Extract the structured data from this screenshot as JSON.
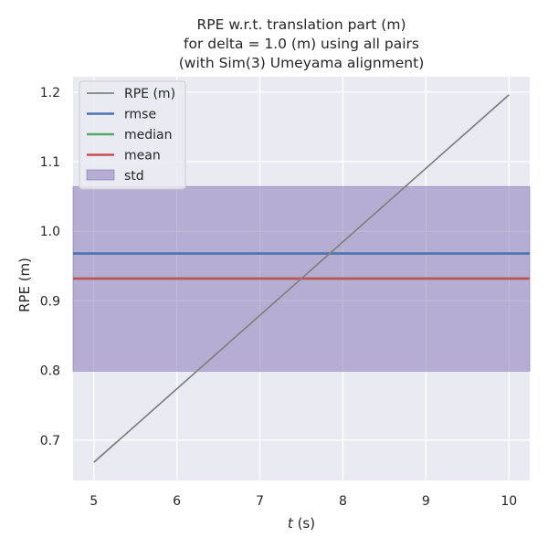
{
  "chart_data": {
    "type": "line",
    "title": [
      "RPE w.r.t. translation part (m)",
      "for delta = 1.0 (m) using all pairs",
      "(with Sim(3) Umeyama alignment)"
    ],
    "xlabel_italic": "t",
    "xlabel_rest": " (s)",
    "ylabel": "RPE (m)",
    "xlim": [
      4.75,
      10.25
    ],
    "ylim": [
      0.642,
      1.222
    ],
    "xticks": [
      5,
      6,
      7,
      8,
      9,
      10
    ],
    "yticks": [
      0.7,
      0.8,
      0.9,
      1.0,
      1.1,
      1.2
    ],
    "ytick_labels": [
      "0.7",
      "0.8",
      "0.9",
      "1.0",
      "1.1",
      "1.2"
    ],
    "grid": true,
    "legend_position": "top-left",
    "series": [
      {
        "name": "RPE (m)",
        "x": [
          5,
          10
        ],
        "y": [
          0.668,
          1.196
        ],
        "color": "#808080"
      }
    ],
    "stats": {
      "rmse": {
        "name": "rmse",
        "value": 0.968,
        "color": "#4c72b0"
      },
      "median": {
        "name": "median",
        "value": 0.932,
        "color": "#55a868"
      },
      "mean": {
        "name": "mean",
        "value": 0.932,
        "color": "#c44e52"
      },
      "std": {
        "name": "std",
        "low": 0.799,
        "high": 1.064,
        "color": "#8172b2"
      }
    },
    "colors": {
      "plot_bg": "#eaeaf2",
      "grid": "#ffffff"
    }
  }
}
